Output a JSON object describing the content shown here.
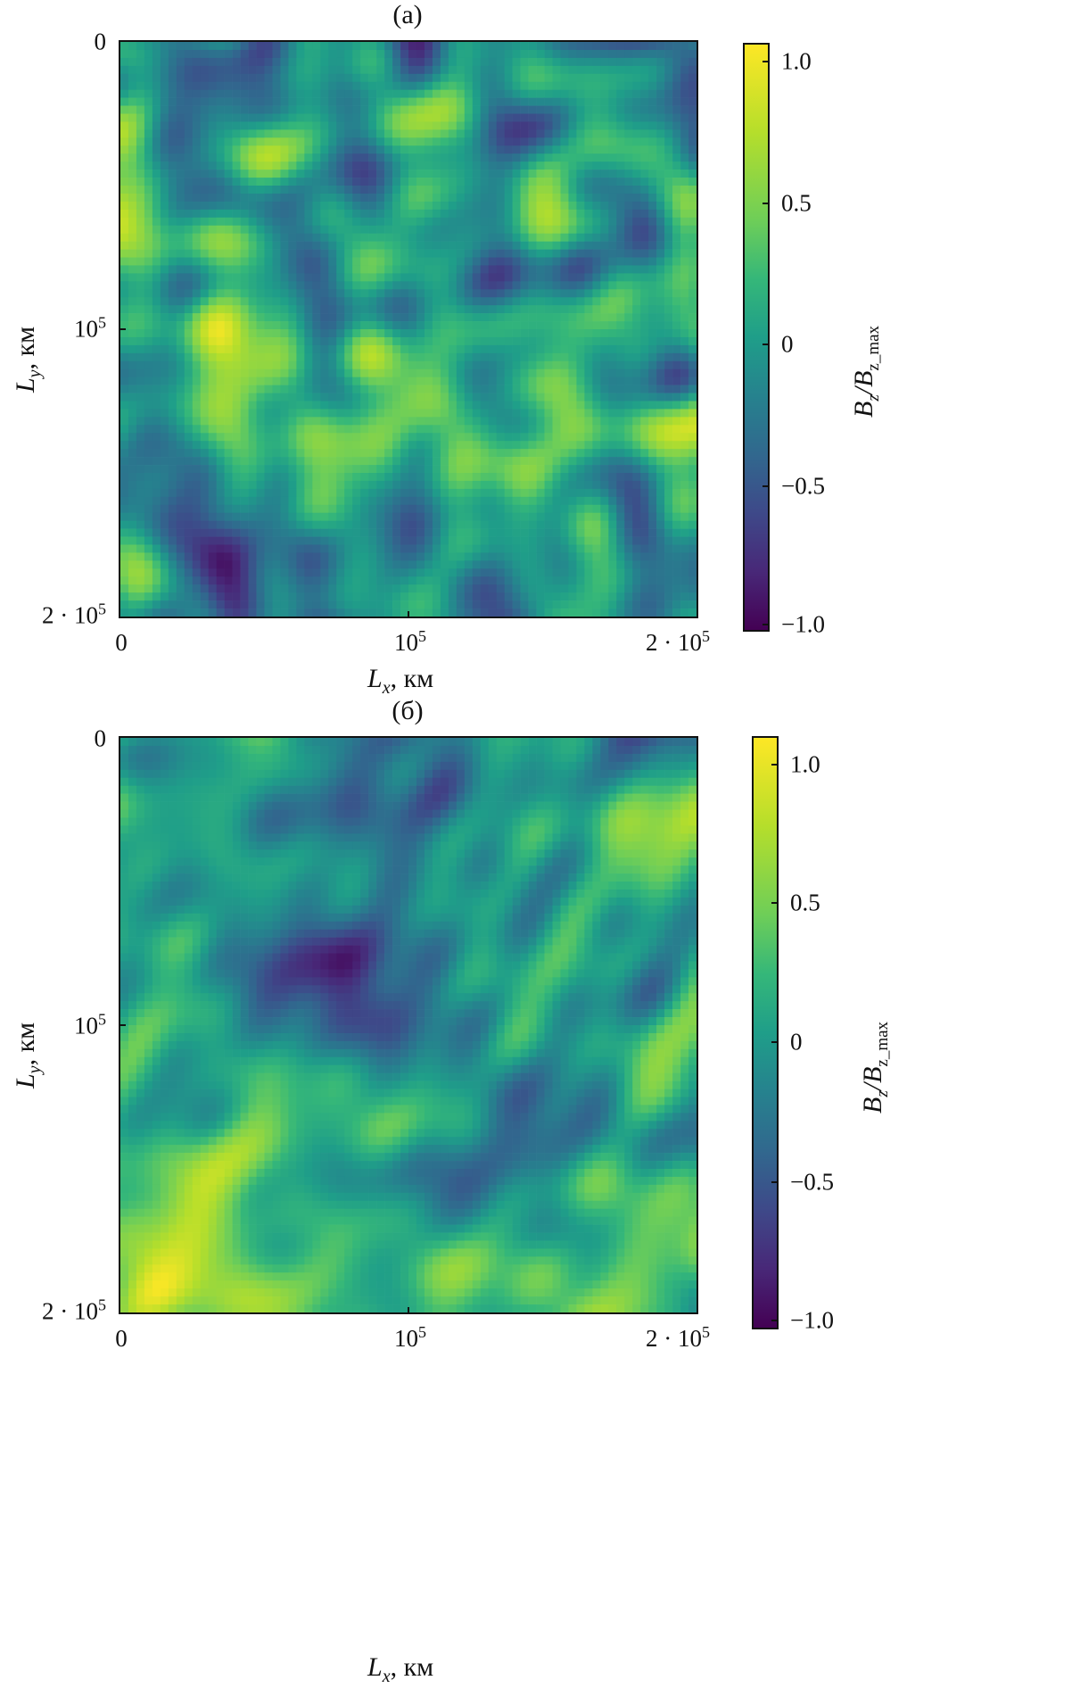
{
  "chart_data": [
    {
      "type": "heatmap",
      "panel_label": "(а)",
      "xlabel_main": "L",
      "xlabel_sub": "x",
      "xlabel_unit": ", км",
      "ylabel_main": "L",
      "ylabel_sub": "y",
      "ylabel_unit": ", км",
      "x_ticks": [
        {
          "base": "0",
          "exp": ""
        },
        {
          "base": "10",
          "exp": "5"
        },
        {
          "base": "2 · 10",
          "exp": "5"
        }
      ],
      "y_ticks": [
        {
          "base": "0",
          "exp": ""
        },
        {
          "base": "10",
          "exp": "5"
        },
        {
          "base": "2 · 10",
          "exp": "5"
        }
      ],
      "xlim": [
        0,
        200000
      ],
      "ylim": [
        200000,
        0
      ],
      "colorbar": {
        "label_main": "B",
        "label_sub1": "z",
        "label_mid": "/B",
        "label_sub2": "z_max",
        "ticks": [
          "1.0",
          "0.5",
          "0",
          "−0.5",
          "−1.0"
        ],
        "range": [
          -1.0,
          1.0
        ],
        "colormap": "viridis"
      },
      "seed": 7
    },
    {
      "type": "heatmap",
      "panel_label": "(б)",
      "xlabel_main": "L",
      "xlabel_sub": "x",
      "xlabel_unit": ", км",
      "ylabel_main": "L",
      "ylabel_sub": "y",
      "ylabel_unit": ", км",
      "x_ticks": [
        {
          "base": "0",
          "exp": ""
        },
        {
          "base": "10",
          "exp": "5"
        },
        {
          "base": "2 · 10",
          "exp": "5"
        }
      ],
      "y_ticks": [
        {
          "base": "0",
          "exp": ""
        },
        {
          "base": "10",
          "exp": "5"
        },
        {
          "base": "2 · 10",
          "exp": "5"
        }
      ],
      "xlim": [
        0,
        200000
      ],
      "ylim": [
        200000,
        0
      ],
      "colorbar": {
        "label_main": "B",
        "label_sub1": "z",
        "label_mid": "/B",
        "label_sub2": "z_max",
        "ticks": [
          "1.0",
          "0.5",
          "0",
          "−0.5",
          "−1.0"
        ],
        "range": [
          -1.0,
          1.0
        ],
        "colormap": "viridis"
      },
      "seed": 23
    }
  ]
}
